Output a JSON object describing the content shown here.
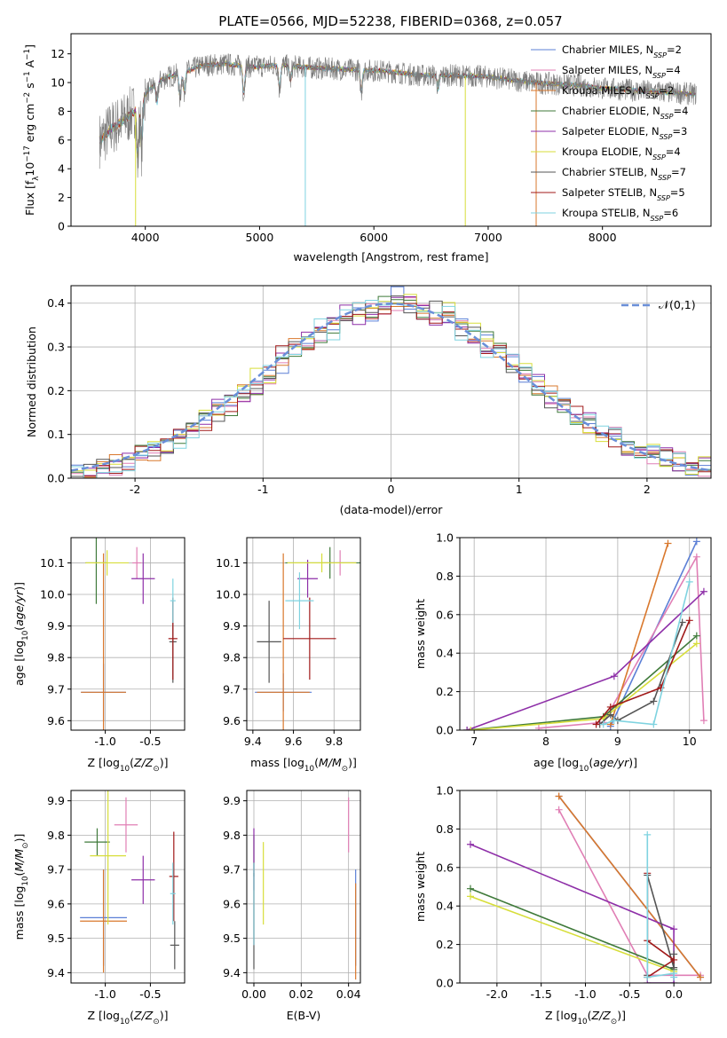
{
  "figure_title": "PLATE=0566, MJD=52238, FIBERID=0368, z=0.057",
  "colors": {
    "Chabrier MILES": "#5b7fd6",
    "Salpeter MILES": "#e07fb5",
    "Kroupa MILES": "#d9782d",
    "Chabrier ELODIE": "#3f7a3a",
    "Salpeter ELODIE": "#8e2fa8",
    "Kroupa ELODIE": "#d7de3a",
    "Chabrier STELIB": "#555555",
    "Salpeter STELIB": "#a01818",
    "Kroupa STELIB": "#7fd3e0",
    "normal": "#6a8fd8"
  },
  "chart_data": [
    {
      "id": "spectrum",
      "type": "line",
      "xlabel": "wavelength [Angstrom, rest frame]",
      "ylabel": "Flux [f_λ10^-17 erg cm^-2 s^-1 A^-1]",
      "xlim": [
        3350,
        8950
      ],
      "ylim": [
        0,
        13.4
      ],
      "xticks": [
        4000,
        5000,
        6000,
        7000,
        8000
      ],
      "yticks": [
        0,
        2,
        4,
        6,
        8,
        10,
        12
      ],
      "legend_position": "right",
      "legend": [
        {
          "label": "Chabrier MILES",
          "nssp": "2"
        },
        {
          "label": "Salpeter MILES",
          "nssp": "4"
        },
        {
          "label": "Kroupa MILES",
          "nssp": "2"
        },
        {
          "label": "Chabrier ELODIE",
          "nssp": "4"
        },
        {
          "label": "Salpeter ELODIE",
          "nssp": "3"
        },
        {
          "label": "Kroupa ELODIE",
          "nssp": "4"
        },
        {
          "label": "Chabrier STELIB",
          "nssp": "7"
        },
        {
          "label": "Salpeter STELIB",
          "nssp": "5"
        },
        {
          "label": "Kroupa STELIB",
          "nssp": "6"
        }
      ],
      "continuum": {
        "x": [
          3610,
          3700,
          3800,
          3900,
          4000,
          4100,
          4200,
          4300,
          4400,
          4500,
          4700,
          4900,
          5200,
          5500,
          5800,
          6100,
          6400,
          6700,
          7000,
          7200,
          7400,
          7600,
          7800,
          8000,
          8200,
          8400,
          8600,
          8800
        ],
        "y": [
          6.0,
          6.8,
          7.3,
          8.0,
          9.2,
          10.0,
          10.4,
          10.6,
          10.9,
          11.2,
          11.3,
          11.1,
          11.2,
          11.0,
          10.9,
          10.8,
          10.5,
          10.5,
          10.4,
          10.2,
          10.0,
          9.9,
          9.8,
          9.6,
          9.5,
          9.4,
          9.3,
          9.2
        ]
      },
      "absorption_lines": [
        {
          "x": 3934,
          "depth": 4.0
        },
        {
          "x": 3968,
          "depth": 3.5
        },
        {
          "x": 4102,
          "depth": 1.5
        },
        {
          "x": 4304,
          "depth": 1.8
        },
        {
          "x": 4341,
          "depth": 1.4
        },
        {
          "x": 4861,
          "depth": 2.0
        },
        {
          "x": 5175,
          "depth": 1.7
        },
        {
          "x": 5270,
          "depth": 1.0
        },
        {
          "x": 5890,
          "depth": 1.5
        },
        {
          "x": 6563,
          "depth": 1.0
        }
      ],
      "spikes": [
        {
          "x": 3915,
          "y": 0,
          "series": "Kroupa ELODIE"
        },
        {
          "x": 5400,
          "y": 0,
          "series": "Kroupa STELIB"
        },
        {
          "x": 6800,
          "y": 0,
          "series": "Kroupa ELODIE"
        },
        {
          "x": 7420,
          "y": 0,
          "series": "Kroupa MILES"
        }
      ]
    },
    {
      "id": "residuals",
      "type": "bar",
      "xlabel": "(data-model)/error",
      "ylabel": "Normed distribution",
      "xlim": [
        -2.5,
        2.5
      ],
      "ylim": [
        0,
        0.44
      ],
      "xticks": [
        -2,
        -1,
        0,
        1,
        2
      ],
      "yticks": [
        0.0,
        0.1,
        0.2,
        0.3,
        0.4
      ],
      "bin_width": 0.1,
      "legend_position": "top-right",
      "legend_label": "𝒩(0,1)",
      "normal_curve": {
        "mean": 0,
        "sigma": 1
      }
    },
    {
      "id": "age_vs_Z",
      "type": "scatter",
      "xlabel": "Z [log10(Z/Z⊙)]",
      "ylabel": "age [log10(age/yr)]",
      "xlim": [
        -1.38,
        -0.12
      ],
      "ylim": [
        9.57,
        10.18
      ],
      "xticks": [
        -1.0,
        -0.5
      ],
      "yticks": [
        9.6,
        9.7,
        9.8,
        9.9,
        10.0,
        10.1
      ],
      "points": [
        {
          "series": "Chabrier MILES",
          "x": -1.02,
          "y": 9.69,
          "xerr": 0.25,
          "yerr": 0.09
        },
        {
          "series": "Salpeter MILES",
          "x": -0.65,
          "y": 10.1,
          "xerr": 0.05,
          "yerr": 0.05
        },
        {
          "series": "Kroupa MILES",
          "x": -1.02,
          "y": 9.69,
          "xerr": 0.25,
          "yerr": 0.44
        },
        {
          "series": "Chabrier ELODIE",
          "x": -1.1,
          "y": 10.1,
          "xerr": 0.12,
          "yerr": 0.13
        },
        {
          "series": "Salpeter ELODIE",
          "x": -0.58,
          "y": 10.05,
          "xerr": 0.13,
          "yerr": 0.08
        },
        {
          "series": "Kroupa ELODIE",
          "x": -0.98,
          "y": 10.1,
          "xerr": 0.24,
          "yerr": 0.04
        },
        {
          "series": "Chabrier STELIB",
          "x": -0.25,
          "y": 9.85,
          "xerr": 0.04,
          "yerr": 0.13
        },
        {
          "series": "Salpeter STELIB",
          "x": -0.25,
          "y": 9.86,
          "xerr": 0.05,
          "yerr": 0.13
        },
        {
          "series": "Kroupa STELIB",
          "x": -0.25,
          "y": 9.98,
          "xerr": 0.03,
          "yerr": 0.07
        }
      ]
    },
    {
      "id": "age_vs_mass",
      "type": "scatter",
      "xlabel": "mass [log10(M/M⊙)]",
      "ylabel": "",
      "xlim": [
        9.37,
        9.93
      ],
      "ylim": [
        9.57,
        10.18
      ],
      "xticks": [
        9.4,
        9.6,
        9.8
      ],
      "yticks": [
        9.6,
        9.7,
        9.8,
        9.9,
        10.0,
        10.1
      ],
      "points": [
        {
          "series": "Chabrier MILES",
          "x": 9.55,
          "y": 9.69,
          "xerr": 0.14,
          "yerr": 0.06
        },
        {
          "series": "Salpeter MILES",
          "x": 9.83,
          "y": 10.1,
          "xerr": 0.08,
          "yerr": 0.04
        },
        {
          "series": "Kroupa MILES",
          "x": 9.55,
          "y": 9.69,
          "xerr": 0.13,
          "yerr": 0.44
        },
        {
          "series": "Chabrier ELODIE",
          "x": 9.78,
          "y": 10.1,
          "xerr": 0.22,
          "yerr": 0.05
        },
        {
          "series": "Salpeter ELODIE",
          "x": 9.67,
          "y": 10.05,
          "xerr": 0.05,
          "yerr": 0.06
        },
        {
          "series": "Kroupa ELODIE",
          "x": 9.74,
          "y": 10.1,
          "xerr": 0.17,
          "yerr": 0.03
        },
        {
          "series": "Chabrier STELIB",
          "x": 9.48,
          "y": 9.85,
          "xerr": 0.06,
          "yerr": 0.13
        },
        {
          "series": "Salpeter STELIB",
          "x": 9.68,
          "y": 9.86,
          "xerr": 0.13,
          "yerr": 0.13
        },
        {
          "series": "Kroupa STELIB",
          "x": 9.63,
          "y": 9.98,
          "xerr": 0.07,
          "yerr": 0.09
        }
      ]
    },
    {
      "id": "weight_vs_age",
      "type": "line",
      "xlabel": "age [log10(age/yr)]",
      "ylabel": "mass weight",
      "xlim": [
        6.8,
        10.3
      ],
      "ylim": [
        0,
        1.0
      ],
      "xticks": [
        7,
        8,
        9,
        10
      ],
      "yticks": [
        0.0,
        0.2,
        0.4,
        0.6,
        0.8,
        1.0
      ],
      "series": [
        {
          "name": "Chabrier MILES",
          "x": [
            8.9,
            10.1
          ],
          "y": [
            0.02,
            0.98
          ]
        },
        {
          "name": "Salpeter MILES",
          "x": [
            7.9,
            8.8,
            10.1,
            10.2
          ],
          "y": [
            0.01,
            0.04,
            0.9,
            0.05
          ]
        },
        {
          "name": "Kroupa MILES",
          "x": [
            8.9,
            9.7
          ],
          "y": [
            0.03,
            0.97
          ]
        },
        {
          "name": "Chabrier ELODIE",
          "x": [
            6.9,
            8.8,
            10.1
          ],
          "y": [
            0.0,
            0.07,
            0.49
          ]
        },
        {
          "name": "Salpeter ELODIE",
          "x": [
            6.9,
            8.95,
            10.2
          ],
          "y": [
            0.0,
            0.28,
            0.72
          ]
        },
        {
          "name": "Kroupa ELODIE",
          "x": [
            6.95,
            8.8,
            10.1
          ],
          "y": [
            0.0,
            0.06,
            0.45
          ]
        },
        {
          "name": "Chabrier STELIB",
          "x": [
            8.75,
            8.9,
            9.0,
            9.5,
            9.9
          ],
          "y": [
            0.03,
            0.08,
            0.05,
            0.15,
            0.56
          ]
        },
        {
          "name": "Salpeter STELIB",
          "x": [
            8.7,
            8.9,
            9.6,
            10.0
          ],
          "y": [
            0.03,
            0.12,
            0.22,
            0.57
          ]
        },
        {
          "name": "Kroupa STELIB",
          "x": [
            8.8,
            8.95,
            9.5,
            10.0
          ],
          "y": [
            0.03,
            0.05,
            0.03,
            0.77
          ]
        }
      ]
    },
    {
      "id": "mass_vs_Z",
      "type": "scatter",
      "xlabel": "Z [log10(Z/Z⊙)]",
      "ylabel": "mass [log10(M/M⊙)]",
      "xlim": [
        -1.38,
        -0.12
      ],
      "ylim": [
        9.37,
        9.93
      ],
      "xticks": [
        -1.0,
        -0.5
      ],
      "yticks": [
        9.4,
        9.5,
        9.6,
        9.7,
        9.8,
        9.9
      ],
      "points": [
        {
          "series": "Chabrier MILES",
          "x": -1.02,
          "y": 9.56,
          "xerr": 0.26,
          "yerr": 0.14
        },
        {
          "series": "Salpeter MILES",
          "x": -0.77,
          "y": 9.83,
          "xerr": 0.13,
          "yerr": 0.08
        },
        {
          "series": "Kroupa MILES",
          "x": -1.02,
          "y": 9.55,
          "xerr": 0.26,
          "yerr": 0.15
        },
        {
          "series": "Chabrier ELODIE",
          "x": -1.09,
          "y": 9.78,
          "xerr": 0.14,
          "yerr": 0.04
        },
        {
          "series": "Salpeter ELODIE",
          "x": -0.58,
          "y": 9.67,
          "xerr": 0.13,
          "yerr": 0.07
        },
        {
          "series": "Kroupa ELODIE",
          "x": -0.97,
          "y": 9.74,
          "xerr": 0.2,
          "yerr": 0.2
        },
        {
          "series": "Chabrier STELIB",
          "x": -0.23,
          "y": 9.48,
          "xerr": 0.05,
          "yerr": 0.07
        },
        {
          "series": "Salpeter STELIB",
          "x": -0.24,
          "y": 9.68,
          "xerr": 0.05,
          "yerr": 0.13
        },
        {
          "series": "Kroupa STELIB",
          "x": -0.25,
          "y": 9.63,
          "xerr": 0.03,
          "yerr": 0.09
        }
      ]
    },
    {
      "id": "mass_vs_EBV",
      "type": "scatter",
      "xlabel": "E(B-V)",
      "ylabel": "",
      "xlim": [
        -0.003,
        0.045
      ],
      "ylim": [
        9.37,
        9.93
      ],
      "xticks": [
        0.0,
        0.02,
        0.04
      ],
      "yticks": [
        9.4,
        9.5,
        9.6,
        9.7,
        9.8,
        9.9
      ],
      "points": [
        {
          "series": "Chabrier MILES",
          "x": 0.043,
          "y": 9.56,
          "xerr": 0,
          "yerr": 0.14
        },
        {
          "series": "Salpeter MILES",
          "x": 0.04,
          "y": 9.83,
          "xerr": 0,
          "yerr": 0.08
        },
        {
          "series": "Kroupa MILES",
          "x": 0.043,
          "y": 9.52,
          "xerr": 0,
          "yerr": 0.14
        },
        {
          "series": "Chabrier ELODIE",
          "x": 0.0,
          "y": 9.74,
          "xerr": 0,
          "yerr": 0.06
        },
        {
          "series": "Salpeter ELODIE",
          "x": 0.0,
          "y": 9.73,
          "xerr": 0,
          "yerr": 0.09
        },
        {
          "series": "Kroupa ELODIE",
          "x": 0.004,
          "y": 9.66,
          "xerr": 0,
          "yerr": 0.12
        },
        {
          "series": "Chabrier STELIB",
          "x": 0.0,
          "y": 9.55,
          "xerr": 0,
          "yerr": 0.14
        },
        {
          "series": "Salpeter STELIB",
          "x": 0.0,
          "y": 9.6,
          "xerr": 0,
          "yerr": 0.12
        },
        {
          "series": "Kroupa STELIB",
          "x": 0.0,
          "y": 9.6,
          "xerr": 0,
          "yerr": 0.12
        }
      ]
    },
    {
      "id": "weight_vs_Z",
      "type": "line",
      "xlabel": "Z [log10(Z/Z⊙)]",
      "ylabel": "mass weight",
      "xlim": [
        -2.42,
        0.42
      ],
      "ylim": [
        0,
        1.0
      ],
      "xticks": [
        -2.0,
        -1.5,
        -1.0,
        -0.5,
        0.0
      ],
      "yticks": [
        0.0,
        0.2,
        0.4,
        0.6,
        0.8,
        1.0
      ],
      "series": [
        {
          "name": "Chabrier MILES",
          "x": [
            -1.3,
            0.3
          ],
          "y": [
            0.97,
            0.03
          ]
        },
        {
          "name": "Salpeter MILES",
          "x": [
            -1.3,
            -0.3,
            0.3
          ],
          "y": [
            0.9,
            0.04,
            0.04
          ]
        },
        {
          "name": "Kroupa MILES",
          "x": [
            -1.3,
            0.3
          ],
          "y": [
            0.97,
            0.03
          ]
        },
        {
          "name": "Chabrier ELODIE",
          "x": [
            -2.3,
            0.0
          ],
          "y": [
            0.49,
            0.07
          ]
        },
        {
          "name": "Salpeter ELODIE",
          "x": [
            -2.3,
            0.0,
            0.0,
            -0.3
          ],
          "y": [
            0.72,
            0.28,
            0.0,
            0.0
          ]
        },
        {
          "name": "Kroupa ELODIE",
          "x": [
            -2.3,
            0.0
          ],
          "y": [
            0.45,
            0.06
          ]
        },
        {
          "name": "Chabrier STELIB",
          "x": [
            -0.3,
            -0.3,
            0.0,
            0.0
          ],
          "y": [
            0.04,
            0.56,
            0.08,
            0.15
          ]
        },
        {
          "name": "Salpeter STELIB",
          "x": [
            -0.3,
            0.0,
            -0.3,
            -0.3
          ],
          "y": [
            0.03,
            0.12,
            0.22,
            0.57
          ]
        },
        {
          "name": "Kroupa STELIB",
          "x": [
            -0.3,
            -0.3,
            0.0,
            0.0
          ],
          "y": [
            0.77,
            0.03,
            0.05,
            0.03
          ]
        }
      ]
    }
  ]
}
